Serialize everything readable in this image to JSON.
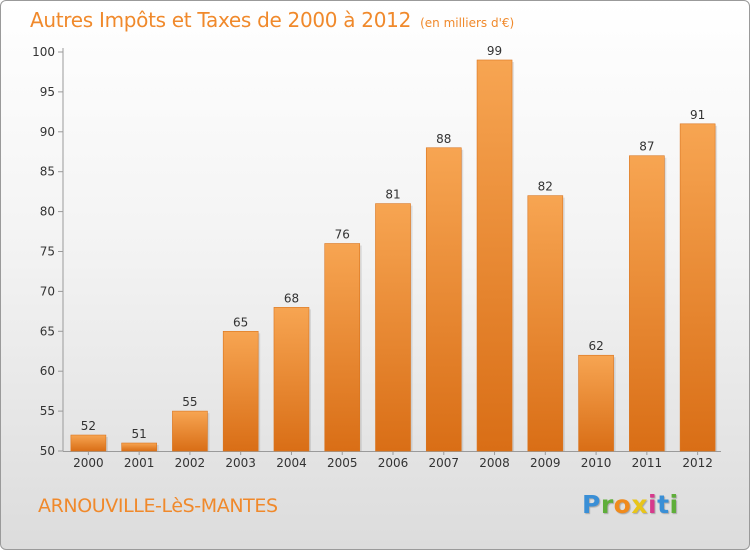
{
  "title": "Autres Impôts et Taxes de 2000 à 2012",
  "subtitle": "(en milliers d'€)",
  "commune": "ARNOUVILLE-LèS-MANTES",
  "brand": {
    "letters": [
      "P",
      "r",
      "o",
      "x",
      "i",
      "t",
      "i"
    ],
    "colors": [
      "#3a8fd6",
      "#5fae3a",
      "#f08a1c",
      "#e8c51a",
      "#d63a8c",
      "#3a8fd6",
      "#5fae3a"
    ]
  },
  "colors": {
    "bar_top": "#f7a552",
    "bar_bottom": "#d96e16",
    "title": "#f0892b"
  },
  "chart_data": {
    "type": "bar",
    "categories": [
      "2000",
      "2001",
      "2002",
      "2003",
      "2004",
      "2005",
      "2006",
      "2007",
      "2008",
      "2009",
      "2010",
      "2011",
      "2012"
    ],
    "values": [
      52,
      51,
      55,
      65,
      68,
      76,
      81,
      88,
      99,
      82,
      62,
      87,
      91
    ],
    "ylim": [
      50,
      100
    ],
    "yticks": [
      50,
      55,
      60,
      65,
      70,
      75,
      80,
      85,
      90,
      95,
      100
    ],
    "grid": false
  }
}
